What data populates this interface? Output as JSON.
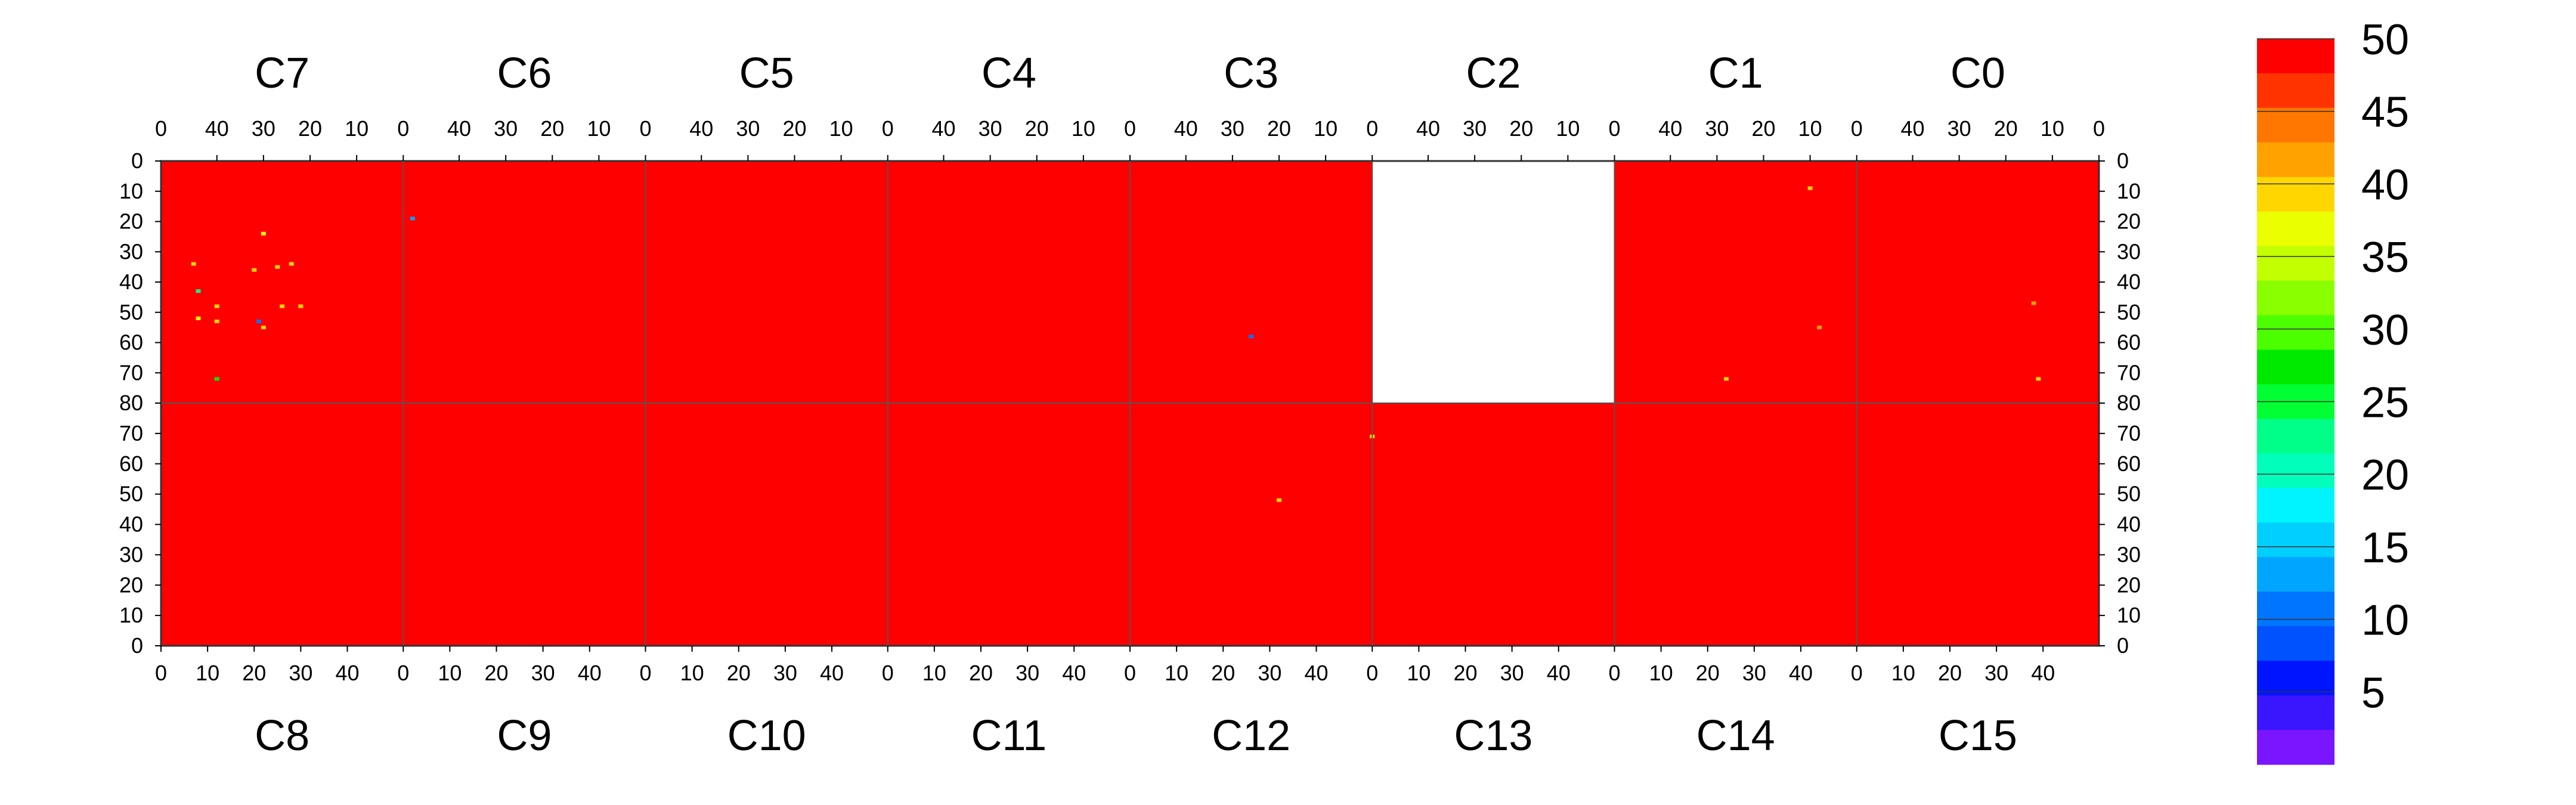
{
  "chart_data": {
    "type": "heatmap",
    "title": "",
    "chips_top": [
      "C7",
      "C6",
      "C5",
      "C4",
      "C3",
      "C2",
      "C1",
      "C0"
    ],
    "chips_bottom": [
      "C8",
      "C9",
      "C10",
      "C11",
      "C12",
      "C13",
      "C14",
      "C15"
    ],
    "chip_x_range": [
      0,
      52
    ],
    "chip_y_range": [
      0,
      80
    ],
    "top_x_ticks": [
      "40",
      "30",
      "20",
      "10",
      "0"
    ],
    "bottom_x_ticks": [
      "0",
      "10",
      "20",
      "30",
      "40"
    ],
    "top_y_ticks": [
      "0",
      "10",
      "20",
      "30",
      "40",
      "50",
      "60",
      "70",
      "80"
    ],
    "bottom_y_ticks": [
      "70",
      "60",
      "50",
      "40",
      "30",
      "20",
      "10",
      "0"
    ],
    "background_value": 50,
    "blank_chips": [
      "C2"
    ],
    "colorbar": {
      "range": [
        0,
        50
      ],
      "levels": 20,
      "tick_labels": [
        "50",
        "45",
        "40",
        "35",
        "30",
        "25",
        "20",
        "15",
        "10",
        "5"
      ],
      "tick_values": [
        50,
        45,
        40,
        35,
        30,
        25,
        20,
        15,
        10,
        5
      ],
      "colors": [
        "#ff0000",
        "#ff3300",
        "#ff7700",
        "#ffa200",
        "#ffd600",
        "#eaff00",
        "#c2ff00",
        "#89ff00",
        "#4cff00",
        "#00ea00",
        "#00ff33",
        "#00ff88",
        "#00ffbb",
        "#00f4ff",
        "#00cfff",
        "#00a5ff",
        "#0075ff",
        "#0051ff",
        "#0015ff",
        "#3a15ff",
        "#7a15ff"
      ]
    },
    "anomalies": [
      {
        "chip": "C7",
        "col": 30,
        "row": 24,
        "value": 38
      },
      {
        "chip": "C7",
        "col": 45,
        "row": 34,
        "value": 40
      },
      {
        "chip": "C7",
        "col": 32,
        "row": 36,
        "value": 40
      },
      {
        "chip": "C7",
        "col": 27,
        "row": 35,
        "value": 40
      },
      {
        "chip": "C7",
        "col": 24,
        "row": 34,
        "value": 40
      },
      {
        "chip": "C7",
        "col": 44,
        "row": 43,
        "value": 22
      },
      {
        "chip": "C7",
        "col": 40,
        "row": 48,
        "value": 40
      },
      {
        "chip": "C7",
        "col": 26,
        "row": 48,
        "value": 40
      },
      {
        "chip": "C7",
        "col": 22,
        "row": 48,
        "value": 40
      },
      {
        "chip": "C7",
        "col": 44,
        "row": 52,
        "value": 38
      },
      {
        "chip": "C7",
        "col": 40,
        "row": 53,
        "value": 40
      },
      {
        "chip": "C7",
        "col": 31,
        "row": 53,
        "value": 10
      },
      {
        "chip": "C7",
        "col": 30,
        "row": 55,
        "value": 40
      },
      {
        "chip": "C7",
        "col": 40,
        "row": 72,
        "value": 28
      },
      {
        "chip": "C6",
        "col": 50,
        "row": 19,
        "value": 12
      },
      {
        "chip": "C3",
        "col": 26,
        "row": 58,
        "value": 10
      },
      {
        "chip": "C1",
        "col": 10,
        "row": 9,
        "value": 40
      },
      {
        "chip": "C1",
        "col": 28,
        "row": 72,
        "value": 40
      },
      {
        "chip": "C1",
        "col": 8,
        "row": 55,
        "value": 42
      },
      {
        "chip": "C0",
        "col": 14,
        "row": 47,
        "value": 42
      },
      {
        "chip": "C0",
        "col": 13,
        "row": 72,
        "value": 40
      },
      {
        "chip": "C12",
        "col": 32,
        "row": 48,
        "value": 40
      },
      {
        "chip": "C12",
        "col": 52,
        "row": 69,
        "value": 40
      }
    ]
  }
}
